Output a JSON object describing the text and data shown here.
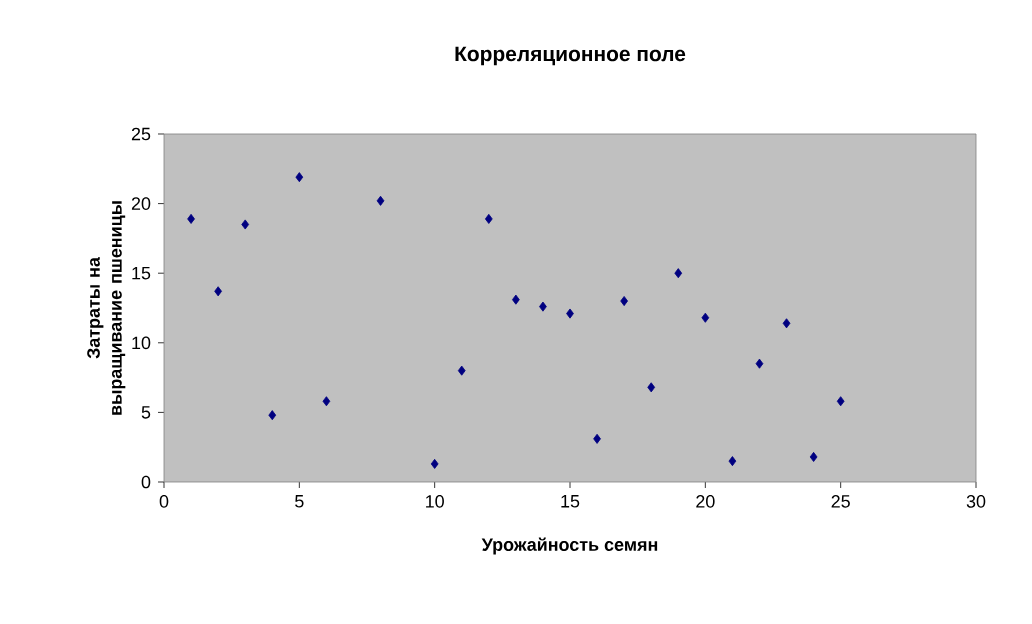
{
  "chart_data": {
    "type": "scatter",
    "title": "Корреляционное поле",
    "xlabel": "Урожайность семян",
    "ylabel": "Затраты на выращивание пшеницы",
    "x": [
      1,
      2,
      3,
      4,
      5,
      6,
      8,
      10,
      11,
      12,
      13,
      14,
      15,
      16,
      17,
      18,
      19,
      20,
      21,
      22,
      23,
      24,
      25
    ],
    "values": [
      18.9,
      13.7,
      18.5,
      4.8,
      21.9,
      5.8,
      20.2,
      1.3,
      8.0,
      18.9,
      13.1,
      12.6,
      12.1,
      3.1,
      13.0,
      6.8,
      15.0,
      11.8,
      1.5,
      8.5,
      11.4,
      1.8,
      5.8
    ],
    "color": "#000080",
    "marker": "diamond",
    "xlim": [
      0,
      30
    ],
    "xticks": [
      0,
      5,
      10,
      15,
      20,
      25,
      30
    ],
    "ylim": [
      0,
      25
    ],
    "yticks": [
      0,
      5,
      10,
      15,
      20,
      25
    ],
    "grid": false
  }
}
